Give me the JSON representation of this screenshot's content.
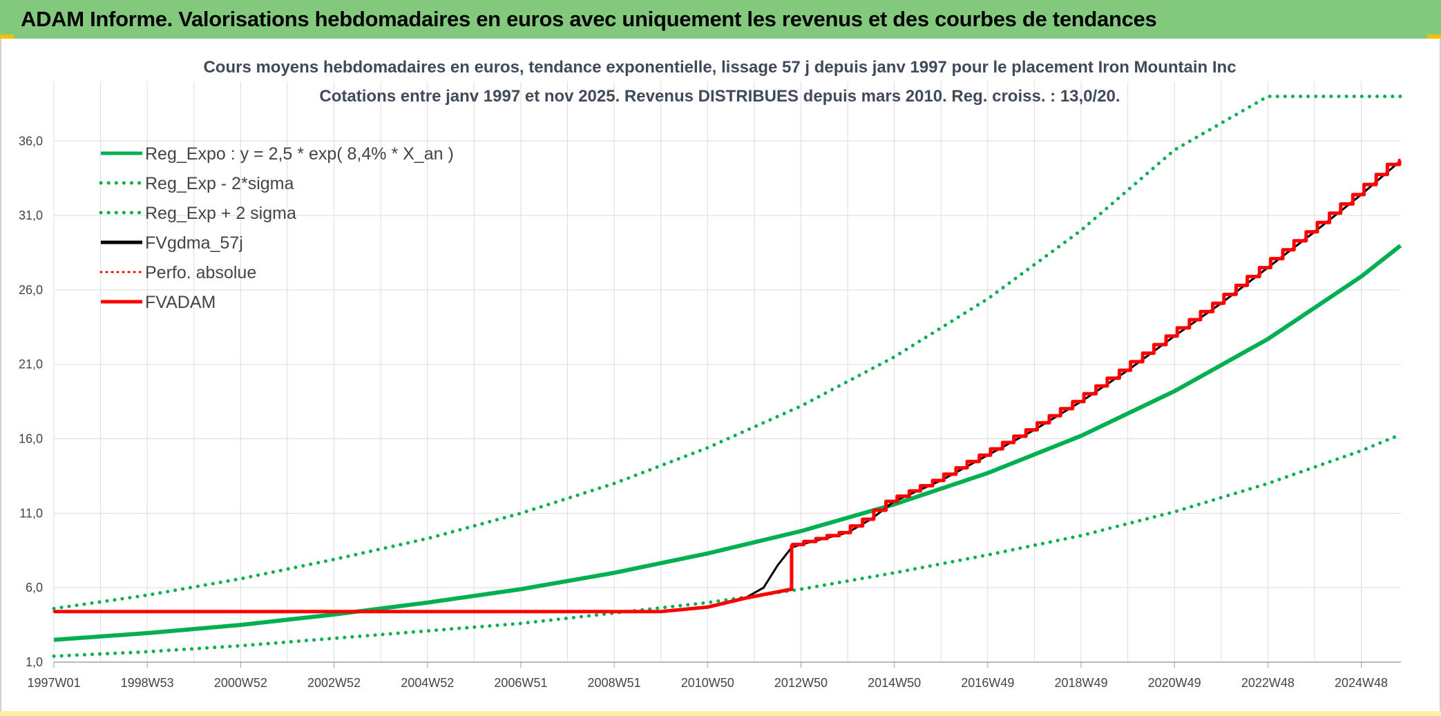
{
  "banner": {
    "title": "ADAM Informe. Valorisations hebdomadaires en euros avec uniquement les revenus et des courbes de tendances"
  },
  "colors": {
    "banner_bg": "#82c97d",
    "green": "#00b050",
    "red": "#ff0000",
    "black": "#000000"
  },
  "chart_data": {
    "type": "line",
    "title": "Cours moyens hebdomadaires en euros, tendance exponentielle, lissage 57 j depuis janv 1997 pour le placement Iron Mountain Inc",
    "subtitle": "Cotations entre janv 1997 et nov 2025. Revenus DISTRIBUES depuis mars 2010. Reg. croiss. : 13,0/20.",
    "ylim": [
      1,
      40
    ],
    "y_ticks": [
      "1,0",
      "6,0",
      "11,0",
      "16,0",
      "21,0",
      "26,0",
      "31,0",
      "36,0"
    ],
    "y_tick_values": [
      1,
      6,
      11,
      16,
      21,
      26,
      31,
      36
    ],
    "xlim": [
      1997.0,
      2025.85
    ],
    "x_ticks": [
      "1997W01",
      "1998W53",
      "2000W52",
      "2002W52",
      "2004W52",
      "2006W51",
      "2008W51",
      "2010W50",
      "2012W50",
      "2014W50",
      "2016W49",
      "2018W49",
      "2020W49",
      "2022W48",
      "2024W48"
    ],
    "x_tick_years": [
      1997,
      1999,
      2001,
      2003,
      2005,
      2007,
      2009,
      2011,
      2013,
      2015,
      2017,
      2019,
      2021,
      2023,
      2025
    ],
    "grid": true,
    "legend_position": "top-left",
    "series": [
      {
        "name": "Reg_Expo : y = 2,5 * exp( 8,4% *  X_an )",
        "style": "solid",
        "color": "#00b050",
        "x": [
          1997,
          1999,
          2001,
          2003,
          2005,
          2007,
          2009,
          2011,
          2013,
          2015,
          2017,
          2019,
          2021,
          2023,
          2025,
          2025.85
        ],
        "y": [
          2.5,
          2.95,
          3.5,
          4.2,
          5.0,
          5.9,
          7.0,
          8.3,
          9.8,
          11.6,
          13.7,
          16.2,
          19.2,
          22.7,
          26.9,
          29.0
        ]
      },
      {
        "name": "Reg_Exp - 2*sigma",
        "style": "dotted",
        "color": "#00b050",
        "x": [
          1997,
          1999,
          2001,
          2003,
          2005,
          2007,
          2009,
          2011,
          2013,
          2015,
          2017,
          2019,
          2021,
          2023,
          2025,
          2025.85
        ],
        "y": [
          1.4,
          1.7,
          2.1,
          2.6,
          3.1,
          3.6,
          4.3,
          5.0,
          5.9,
          7.0,
          8.2,
          9.5,
          11.1,
          13.0,
          15.2,
          16.3
        ]
      },
      {
        "name": "Reg_Exp + 2 sigma",
        "style": "dotted",
        "color": "#00b050",
        "x": [
          1997,
          1999,
          2001,
          2003,
          2005,
          2007,
          2009,
          2011,
          2013,
          2015,
          2017,
          2019,
          2021,
          2023,
          2025,
          2025.85
        ],
        "y": [
          4.6,
          5.5,
          6.6,
          7.9,
          9.3,
          11.0,
          13.0,
          15.4,
          18.2,
          21.5,
          25.4,
          30.0,
          35.4,
          39.0,
          39.0,
          39.0
        ]
      },
      {
        "name": "FVgdma_57j",
        "style": "solid",
        "color": "#000000",
        "x": [
          1997,
          2010.0,
          2011.0,
          2011.8,
          2012.2,
          2012.5,
          2012.8,
          2013.0,
          2014.0,
          2014.5,
          2015.0,
          2016.0,
          2017.0,
          2018.0,
          2019.0,
          2020.0,
          2021.0,
          2022.0,
          2023.0,
          2024.0,
          2025.0,
          2025.85
        ],
        "y": [
          4.4,
          4.4,
          4.7,
          5.3,
          6.0,
          7.5,
          8.7,
          8.9,
          9.7,
          10.6,
          11.8,
          13.2,
          14.9,
          16.6,
          18.5,
          20.6,
          22.9,
          25.1,
          27.5,
          29.9,
          32.4,
          34.7
        ]
      },
      {
        "name": "Perfo. absolue",
        "style": "dotted",
        "color": "#ff0000",
        "x": [
          1997,
          2010.0,
          2011.0,
          2011.8,
          2012.79,
          2012.8,
          2013.0,
          2014.0,
          2014.5,
          2015.0,
          2016.0,
          2017.0,
          2018.0,
          2019.0,
          2020.0,
          2021.0,
          2022.0,
          2023.0,
          2024.0,
          2025.0,
          2025.85
        ],
        "y": [
          4.4,
          4.4,
          4.7,
          5.3,
          5.9,
          8.8,
          8.9,
          9.7,
          10.6,
          11.8,
          13.2,
          14.9,
          16.6,
          18.5,
          20.6,
          22.9,
          25.1,
          27.5,
          29.9,
          32.4,
          34.7
        ]
      },
      {
        "name": "FVADAM",
        "style": "solid",
        "color": "#ff0000",
        "x": [
          1997,
          2010.0,
          2011.0,
          2011.8,
          2012.79,
          2012.8,
          2013.0,
          2014.0,
          2014.5,
          2015.0,
          2016.0,
          2017.0,
          2018.0,
          2019.0,
          2020.0,
          2021.0,
          2022.0,
          2023.0,
          2024.0,
          2025.0,
          2025.85
        ],
        "y": [
          4.4,
          4.4,
          4.7,
          5.3,
          5.9,
          8.8,
          8.9,
          9.7,
          10.6,
          11.8,
          13.2,
          14.9,
          16.6,
          18.5,
          20.6,
          22.9,
          25.1,
          27.5,
          29.9,
          32.4,
          34.7
        ]
      }
    ]
  }
}
